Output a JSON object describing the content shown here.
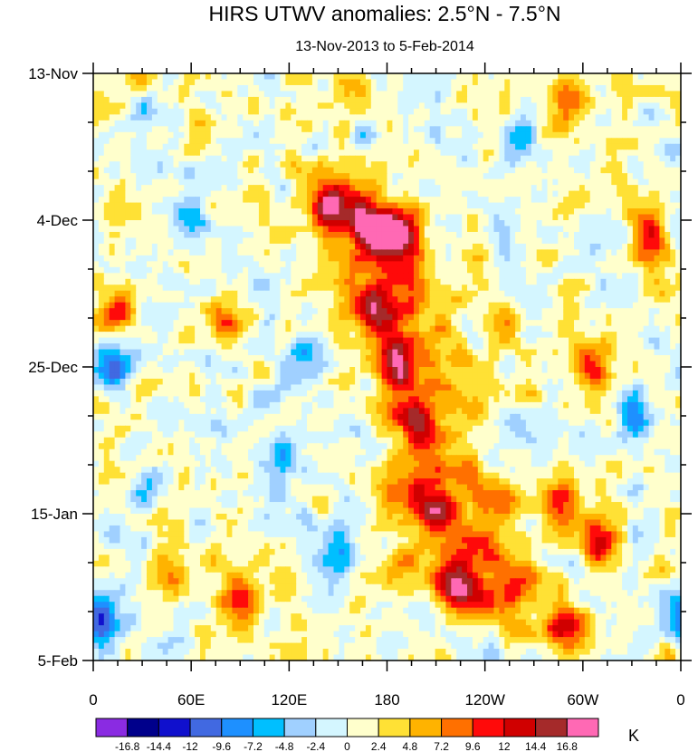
{
  "chart_data": {
    "type": "heatmap",
    "title": "HIRS UTWV anomalies: 2.5°N - 7.5°N",
    "subtitle": "13-Nov-2013 to 5-Feb-2014",
    "x_ticks": [
      "0",
      "60E",
      "120E",
      "180",
      "120W",
      "60W",
      "0"
    ],
    "x_tick_values": [
      0,
      60,
      120,
      180,
      240,
      300,
      360
    ],
    "xlim": [
      0,
      360
    ],
    "y_ticks": [
      "13-Nov",
      "4-Dec",
      "25-Dec",
      "15-Jan",
      "5-Feb"
    ],
    "y_tick_days": [
      0,
      21,
      42,
      63,
      84
    ],
    "ylim_days": [
      0,
      84
    ],
    "colorbar": {
      "unit": "K",
      "levels": [
        "-16.8",
        "-14.4",
        "-12",
        "-9.6",
        "-7.2",
        "-4.8",
        "-2.4",
        "0",
        "2.4",
        "4.8",
        "7.2",
        "9.6",
        "12",
        "14.4",
        "16.8"
      ],
      "colors": [
        "#8a2be2",
        "#00008b",
        "#1010cd",
        "#4169e1",
        "#1e90ff",
        "#00bfff",
        "#a0d0ff",
        "#d4f6ff",
        "#ffffcc",
        "#ffe135",
        "#ffb300",
        "#ff7000",
        "#ff0a0a",
        "#d00000",
        "#a52a2a",
        "#ff69b4"
      ]
    },
    "features": [
      {
        "lon": 5,
        "day": 78,
        "value": -14
      },
      {
        "lon": 10,
        "day": 42,
        "value": -12
      },
      {
        "lon": 185,
        "day": 42,
        "value": 16
      },
      {
        "lon": 185,
        "day": 23,
        "value": 16
      },
      {
        "lon": 170,
        "day": 22,
        "value": 12
      },
      {
        "lon": 175,
        "day": 33,
        "value": 10
      },
      {
        "lon": 145,
        "day": 19,
        "value": 10
      },
      {
        "lon": 200,
        "day": 50,
        "value": 9
      },
      {
        "lon": 210,
        "day": 63,
        "value": 10
      },
      {
        "lon": 225,
        "day": 73,
        "value": 12
      },
      {
        "lon": 290,
        "day": 79,
        "value": 14
      },
      {
        "lon": 285,
        "day": 62,
        "value": 10
      },
      {
        "lon": 310,
        "day": 67,
        "value": 11
      },
      {
        "lon": 290,
        "day": 4,
        "value": 10
      },
      {
        "lon": 340,
        "day": 23,
        "value": 11
      },
      {
        "lon": 15,
        "day": 34,
        "value": 10
      },
      {
        "lon": 90,
        "day": 75,
        "value": 10
      },
      {
        "lon": 160,
        "day": 2,
        "value": 9
      },
      {
        "lon": 305,
        "day": 42,
        "value": 9
      },
      {
        "lon": 80,
        "day": 35,
        "value": 8
      },
      {
        "lon": 250,
        "day": 36,
        "value": 8
      },
      {
        "lon": 50,
        "day": 72,
        "value": 8
      },
      {
        "lon": 60,
        "day": 21,
        "value": -8
      },
      {
        "lon": 260,
        "day": 10,
        "value": -7
      },
      {
        "lon": 150,
        "day": 68,
        "value": -9
      },
      {
        "lon": 115,
        "day": 55,
        "value": -8
      },
      {
        "lon": 130,
        "day": 40,
        "value": -7
      },
      {
        "lon": 330,
        "day": 49,
        "value": -7
      },
      {
        "lon": 30,
        "day": 60,
        "value": -7
      },
      {
        "lon": 245,
        "day": 56,
        "value": -7
      }
    ],
    "bands": [
      {
        "lon0": 150,
        "day0": 18,
        "lon1": 200,
        "day1": 30,
        "width": 14,
        "amp": 8
      },
      {
        "lon0": 165,
        "day0": 33,
        "lon1": 225,
        "day1": 45,
        "width": 12,
        "amp": 7
      },
      {
        "lon0": 190,
        "day0": 49,
        "lon1": 250,
        "day1": 60,
        "width": 11,
        "amp": 7
      },
      {
        "lon0": 190,
        "day0": 59,
        "lon1": 260,
        "day1": 72,
        "width": 12,
        "amp": 8
      },
      {
        "lon0": 190,
        "day0": 70,
        "lon1": 255,
        "day1": 78,
        "width": 10,
        "amp": 6
      }
    ]
  }
}
